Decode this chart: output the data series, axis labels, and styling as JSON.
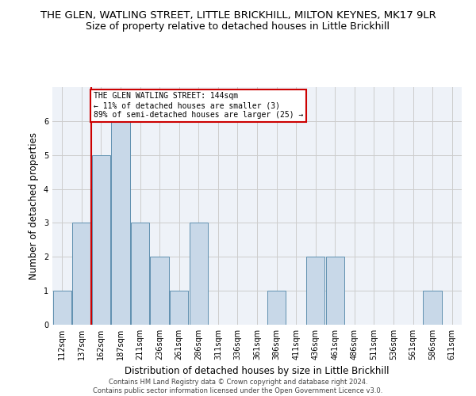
{
  "title": "THE GLEN, WATLING STREET, LITTLE BRICKHILL, MILTON KEYNES, MK17 9LR",
  "subtitle": "Size of property relative to detached houses in Little Brickhill",
  "xlabel": "Distribution of detached houses by size in Little Brickhill",
  "ylabel": "Number of detached properties",
  "footer_line1": "Contains HM Land Registry data © Crown copyright and database right 2024.",
  "footer_line2": "Contains public sector information licensed under the Open Government Licence v3.0.",
  "categories": [
    "112sqm",
    "137sqm",
    "162sqm",
    "187sqm",
    "211sqm",
    "236sqm",
    "261sqm",
    "286sqm",
    "311sqm",
    "336sqm",
    "361sqm",
    "386sqm",
    "411sqm",
    "436sqm",
    "461sqm",
    "486sqm",
    "511sqm",
    "536sqm",
    "561sqm",
    "586sqm",
    "611sqm"
  ],
  "values": [
    1,
    3,
    5,
    6,
    3,
    2,
    1,
    3,
    0,
    0,
    0,
    1,
    0,
    2,
    2,
    0,
    0,
    0,
    0,
    1,
    0
  ],
  "bar_color": "#c8d8e8",
  "bar_edge_color": "#6090b0",
  "vline_x": 1.5,
  "vline_color": "#cc0000",
  "annotation_text": "THE GLEN WATLING STREET: 144sqm\n← 11% of detached houses are smaller (3)\n89% of semi-detached houses are larger (25) →",
  "annotation_box_color": "#ffffff",
  "annotation_box_edge": "#cc0000",
  "ylim": [
    0,
    7
  ],
  "yticks": [
    0,
    1,
    2,
    3,
    4,
    5,
    6,
    7
  ],
  "grid_color": "#cccccc",
  "bg_color": "#eef2f8",
  "title_fontsize": 9.5,
  "subtitle_fontsize": 9,
  "tick_fontsize": 7,
  "ylabel_fontsize": 8.5,
  "xlabel_fontsize": 8.5,
  "annotation_fontsize": 7,
  "footer_fontsize": 6
}
